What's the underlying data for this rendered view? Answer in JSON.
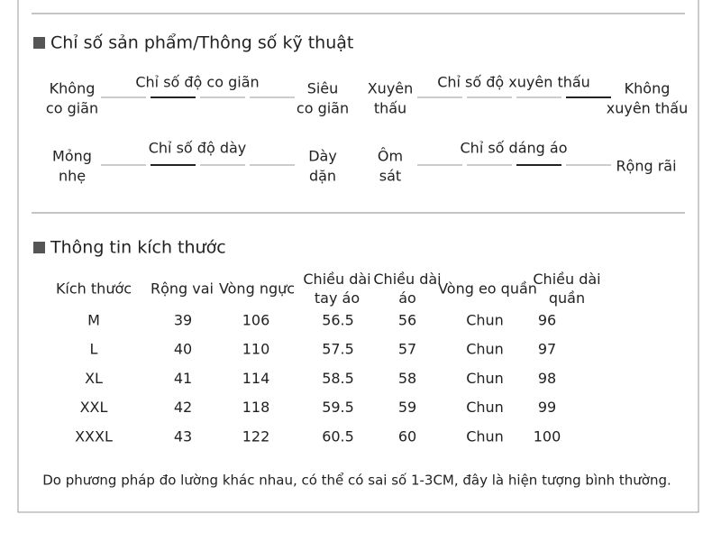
{
  "specs": {
    "title": "Chỉ số sản phẩm/Thông số kỹ thuật",
    "scales": [
      {
        "title": "Chỉ số độ co giãn",
        "left": [
          "Không",
          "co giãn"
        ],
        "right": [
          "Siêu",
          "co giãn"
        ],
        "selected": 1
      },
      {
        "title": "Chỉ số độ xuyên thấu",
        "left": [
          "Xuyên",
          "thấu"
        ],
        "right": [
          "Không",
          "xuyên thấu"
        ],
        "selected": 3
      },
      {
        "title": "Chỉ số độ dày",
        "left": [
          "Mỏng",
          "nhẹ"
        ],
        "right": [
          "Dày",
          "dặn"
        ],
        "selected": 1
      },
      {
        "title": "Chỉ số dáng áo",
        "left": [
          "Ôm",
          "sát"
        ],
        "right": [
          "Rộng rãi"
        ],
        "selected": 2
      }
    ]
  },
  "size": {
    "title": "Thông tin kích thước",
    "headers": [
      [
        "Kích thước"
      ],
      [
        "Rộng vai"
      ],
      [
        "Vòng ngực"
      ],
      [
        "Chiều dài",
        "tay áo"
      ],
      [
        "Chiều dài",
        "áo"
      ],
      [
        "Vòng eo quần"
      ],
      [
        "Chiều dài",
        "quần"
      ]
    ],
    "rows": [
      [
        "M",
        39,
        106,
        56.5,
        56,
        "Chun",
        96
      ],
      [
        "L",
        40,
        110,
        57.5,
        57,
        "Chun",
        97
      ],
      [
        "XL",
        41,
        114,
        58.5,
        58,
        "Chun",
        98
      ],
      [
        "XXL",
        42,
        118,
        59.5,
        59,
        "Chun",
        99
      ],
      [
        "XXXL",
        43,
        122,
        60.5,
        60,
        "Chun",
        100
      ]
    ],
    "note": "Do phương pháp đo lường khác nhau, có thể có sai số 1-3CM, đây là hiện tượng bình thường."
  }
}
